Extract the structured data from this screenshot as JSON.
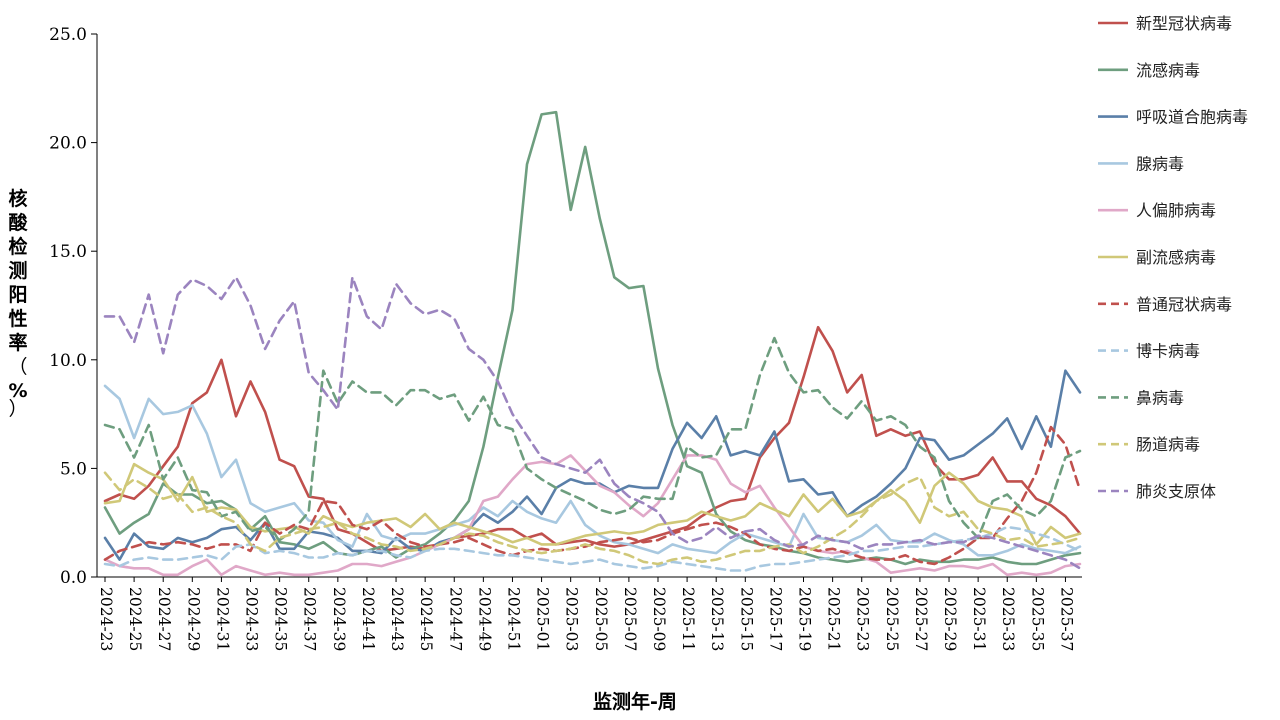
{
  "chart_data": {
    "type": "line",
    "title": "",
    "xlabel": "监测年-周",
    "ylabel": "核酸检测阳性率（%）",
    "ylim": [
      0,
      25
    ],
    "yticks": [
      "0.0",
      "5.0",
      "10.0",
      "15.0",
      "20.0",
      "25.0"
    ],
    "grid": false,
    "legend_position": "right",
    "x_tick_labels": [
      "2024-23",
      "2024-25",
      "2024-27",
      "2024-29",
      "2024-31",
      "2024-33",
      "2024-35",
      "2024-37",
      "2024-39",
      "2024-41",
      "2024-43",
      "2024-45",
      "2024-47",
      "2024-49",
      "2024-51",
      "2025-01",
      "2025-03",
      "2025-05",
      "2025-07",
      "2025-09",
      "2025-11",
      "2025-13",
      "2025-15",
      "2025-17",
      "2025-19",
      "2025-21",
      "2025-23",
      "2025-25",
      "2025-27",
      "2025-29",
      "2025-31",
      "2025-33",
      "2025-35",
      "2025-37"
    ],
    "x": [
      "2024-23",
      "2024-24",
      "2024-25",
      "2024-26",
      "2024-27",
      "2024-28",
      "2024-29",
      "2024-30",
      "2024-31",
      "2024-32",
      "2024-33",
      "2024-34",
      "2024-35",
      "2024-36",
      "2024-37",
      "2024-38",
      "2024-39",
      "2024-40",
      "2024-41",
      "2024-42",
      "2024-43",
      "2024-44",
      "2024-45",
      "2024-46",
      "2024-47",
      "2024-48",
      "2024-49",
      "2024-50",
      "2024-51",
      "2024-52",
      "2025-01",
      "2025-02",
      "2025-03",
      "2025-04",
      "2025-05",
      "2025-06",
      "2025-07",
      "2025-08",
      "2025-09",
      "2025-10",
      "2025-11",
      "2025-12",
      "2025-13",
      "2025-14",
      "2025-15",
      "2025-16",
      "2025-17",
      "2025-18",
      "2025-19",
      "2025-20",
      "2025-21",
      "2025-22",
      "2025-23",
      "2025-24",
      "2025-25",
      "2025-26",
      "2025-27",
      "2025-28",
      "2025-29",
      "2025-30",
      "2025-31",
      "2025-32",
      "2025-33",
      "2025-34",
      "2025-35",
      "2025-36",
      "2025-37",
      "2025-38"
    ],
    "series": [
      {
        "name": "新型冠状病毒",
        "color": "#c0504d",
        "dash": "solid",
        "values": [
          3.5,
          3.8,
          3.6,
          4.2,
          5.1,
          6.0,
          8.0,
          8.5,
          10.0,
          7.4,
          9.0,
          7.6,
          5.4,
          5.1,
          3.7,
          3.6,
          2.2,
          2.0,
          1.6,
          1.2,
          1.3,
          1.4,
          1.3,
          1.5,
          1.8,
          1.9,
          2.0,
          2.2,
          2.2,
          1.8,
          2.0,
          1.5,
          1.6,
          1.7,
          1.5,
          1.4,
          1.5,
          1.7,
          1.9,
          2.1,
          2.3,
          2.8,
          3.2,
          3.5,
          3.6,
          5.5,
          6.4,
          7.1,
          9.2,
          11.5,
          10.4,
          8.5,
          9.3,
          6.5,
          6.8,
          6.5,
          6.7,
          5.2,
          4.5,
          4.5,
          4.7,
          5.5,
          4.4,
          4.4,
          3.6,
          3.3,
          2.8,
          2.0
        ]
      },
      {
        "name": "流感病毒",
        "color": "#6e9e7f",
        "dash": "solid",
        "values": [
          3.2,
          2.0,
          2.5,
          2.9,
          4.3,
          3.8,
          3.8,
          3.4,
          3.5,
          3.1,
          2.2,
          2.8,
          1.6,
          1.5,
          1.3,
          1.6,
          1.1,
          1.0,
          1.2,
          1.4,
          0.9,
          1.3,
          1.5,
          2.0,
          2.6,
          3.5,
          6.0,
          9.2,
          12.3,
          19.0,
          21.3,
          21.4,
          16.9,
          19.8,
          16.5,
          13.8,
          13.3,
          13.4,
          9.6,
          7.0,
          5.1,
          4.8,
          2.9,
          2.1,
          1.7,
          1.5,
          1.4,
          1.2,
          1.1,
          0.9,
          0.8,
          0.7,
          0.8,
          0.9,
          0.8,
          0.6,
          0.8,
          0.7,
          0.7,
          0.8,
          0.8,
          0.9,
          0.7,
          0.6,
          0.6,
          0.8,
          1.0,
          1.1
        ]
      },
      {
        "name": "呼吸道合胞病毒",
        "color": "#5a7fa8",
        "dash": "solid",
        "values": [
          1.8,
          0.8,
          2.0,
          1.4,
          1.3,
          1.8,
          1.6,
          1.8,
          2.2,
          2.3,
          1.7,
          2.5,
          1.3,
          1.3,
          2.1,
          2.0,
          1.8,
          1.2,
          1.2,
          1.1,
          1.8,
          1.3,
          1.2,
          1.6,
          1.8,
          2.2,
          2.9,
          2.5,
          3.0,
          3.7,
          2.9,
          4.1,
          4.5,
          4.3,
          4.3,
          3.9,
          4.2,
          4.1,
          4.1,
          5.9,
          7.1,
          6.4,
          7.4,
          5.6,
          5.8,
          5.6,
          6.7,
          4.4,
          4.5,
          3.8,
          3.9,
          2.8,
          3.3,
          3.7,
          4.3,
          5.0,
          6.4,
          6.3,
          5.4,
          5.6,
          6.1,
          6.6,
          7.3,
          5.9,
          7.4,
          6.0,
          9.5,
          8.5
        ]
      },
      {
        "name": "腺病毒",
        "color": "#a8c8e0",
        "dash": "solid",
        "values": [
          8.8,
          8.2,
          6.4,
          8.2,
          7.5,
          7.6,
          7.9,
          6.6,
          4.6,
          5.4,
          3.4,
          3.0,
          3.2,
          3.4,
          2.6,
          2.5,
          1.7,
          1.4,
          2.9,
          1.9,
          1.7,
          2.0,
          2.0,
          2.2,
          2.4,
          2.6,
          3.2,
          2.8,
          3.5,
          3.0,
          2.7,
          2.5,
          3.5,
          2.4,
          1.9,
          1.6,
          1.5,
          1.3,
          1.1,
          1.5,
          1.3,
          1.2,
          1.1,
          1.6,
          2.0,
          1.8,
          1.6,
          1.4,
          2.9,
          1.8,
          1.7,
          1.6,
          1.9,
          2.4,
          1.7,
          1.6,
          1.6,
          2.0,
          1.7,
          1.5,
          1.0,
          1.0,
          1.2,
          1.5,
          1.3,
          1.2,
          1.1,
          1.4
        ]
      },
      {
        "name": "人偏肺病毒",
        "color": "#e0a8c8",
        "dash": "solid",
        "values": [
          0.8,
          0.5,
          0.4,
          0.4,
          0.1,
          0.1,
          0.5,
          0.8,
          0.1,
          0.5,
          0.3,
          0.1,
          0.2,
          0.1,
          0.1,
          0.2,
          0.3,
          0.6,
          0.6,
          0.5,
          0.7,
          0.9,
          1.2,
          1.5,
          1.8,
          2.2,
          3.5,
          3.7,
          4.5,
          5.2,
          5.3,
          5.2,
          5.6,
          4.9,
          4.2,
          3.9,
          3.3,
          2.8,
          3.4,
          4.5,
          5.6,
          5.6,
          5.4,
          4.3,
          3.9,
          4.2,
          3.2,
          2.3,
          1.4,
          1.2,
          1.1,
          1.2,
          0.9,
          0.7,
          0.2,
          0.3,
          0.4,
          0.3,
          0.5,
          0.5,
          0.4,
          0.6,
          0.1,
          0.2,
          0.1,
          0.2,
          0.5,
          0.6
        ]
      },
      {
        "name": "副流感病毒",
        "color": "#d0c878",
        "dash": "solid",
        "values": [
          3.4,
          3.5,
          5.2,
          4.8,
          4.5,
          3.5,
          4.6,
          3.0,
          3.2,
          3.1,
          2.3,
          2.1,
          2.2,
          2.3,
          2.0,
          2.8,
          2.5,
          2.3,
          2.5,
          2.6,
          2.7,
          2.3,
          2.9,
          2.2,
          2.5,
          2.3,
          2.1,
          1.9,
          1.6,
          1.8,
          1.5,
          1.5,
          1.7,
          1.9,
          2.0,
          2.1,
          2.0,
          2.1,
          2.4,
          2.5,
          2.6,
          3.0,
          2.8,
          2.6,
          2.8,
          3.4,
          3.1,
          2.8,
          3.8,
          3.0,
          3.6,
          2.8,
          3.0,
          3.5,
          4.0,
          3.5,
          2.5,
          4.2,
          4.8,
          4.3,
          3.5,
          3.2,
          3.1,
          2.8,
          1.5,
          2.3,
          1.8,
          2.0
        ]
      },
      {
        "name": "普通冠状病毒",
        "color": "#c0504d",
        "dash": "dashed",
        "values": [
          0.8,
          1.2,
          1.4,
          1.6,
          1.5,
          1.6,
          1.5,
          1.3,
          1.5,
          1.5,
          1.2,
          2.5,
          2.0,
          2.4,
          2.2,
          3.5,
          3.4,
          2.4,
          2.2,
          2.6,
          2.0,
          1.6,
          1.4,
          1.5,
          1.6,
          1.8,
          1.5,
          1.2,
          1.0,
          1.2,
          1.3,
          1.2,
          1.3,
          1.4,
          1.6,
          1.7,
          1.8,
          1.6,
          1.7,
          2.0,
          2.2,
          2.4,
          2.5,
          2.3,
          2.0,
          1.5,
          1.3,
          1.2,
          1.4,
          1.2,
          1.3,
          1.1,
          0.9,
          0.8,
          0.8,
          1.0,
          0.7,
          0.6,
          0.9,
          1.3,
          1.8,
          1.8,
          2.7,
          3.5,
          4.8,
          6.9,
          6.1,
          4.0
        ]
      },
      {
        "name": "博卡病毒",
        "color": "#a8c8e0",
        "dash": "dashed",
        "values": [
          0.6,
          0.5,
          0.8,
          0.9,
          0.8,
          0.8,
          0.9,
          1.0,
          0.8,
          1.4,
          1.5,
          1.1,
          1.2,
          1.1,
          0.9,
          0.9,
          1.1,
          1.0,
          1.2,
          1.2,
          1.0,
          0.9,
          1.2,
          1.3,
          1.3,
          1.2,
          1.1,
          1.0,
          1.0,
          0.9,
          0.8,
          0.7,
          0.6,
          0.7,
          0.8,
          0.6,
          0.5,
          0.4,
          0.5,
          0.7,
          0.6,
          0.5,
          0.4,
          0.3,
          0.3,
          0.5,
          0.6,
          0.6,
          0.7,
          0.8,
          0.9,
          1.0,
          1.2,
          1.2,
          1.3,
          1.4,
          1.4,
          1.5,
          1.6,
          1.7,
          1.8,
          2.0,
          2.3,
          2.2,
          2.0,
          1.8,
          1.5,
          1.2
        ]
      },
      {
        "name": "鼻病毒",
        "color": "#6e9e7f",
        "dash": "dashed",
        "values": [
          7.0,
          6.8,
          5.5,
          7.0,
          4.5,
          5.5,
          4.0,
          3.9,
          2.8,
          3.0,
          2.1,
          2.3,
          1.7,
          2.2,
          3.0,
          9.5,
          8.0,
          9.0,
          8.5,
          8.5,
          7.9,
          8.6,
          8.6,
          8.2,
          8.4,
          7.2,
          8.3,
          7.0,
          6.8,
          5.0,
          4.5,
          4.1,
          3.8,
          3.5,
          3.1,
          2.9,
          3.1,
          3.7,
          3.6,
          3.6,
          6.0,
          5.5,
          5.6,
          6.8,
          6.8,
          9.3,
          11.0,
          9.4,
          8.5,
          8.6,
          7.8,
          7.3,
          8.1,
          7.2,
          7.4,
          7.0,
          6.0,
          5.5,
          3.5,
          2.5,
          1.8,
          3.5,
          3.8,
          3.1,
          2.8,
          3.5,
          5.5,
          5.8
        ]
      },
      {
        "name": "肠道病毒",
        "color": "#d0c878",
        "dash": "dashed",
        "values": [
          4.8,
          4.0,
          4.5,
          4.1,
          3.6,
          3.8,
          3.0,
          3.2,
          2.8,
          2.5,
          1.5,
          1.2,
          1.8,
          2.0,
          2.2,
          2.3,
          2.5,
          2.0,
          1.8,
          1.5,
          1.4,
          1.2,
          1.3,
          1.5,
          1.8,
          2.0,
          1.9,
          1.6,
          1.4,
          1.2,
          1.1,
          1.2,
          1.3,
          1.5,
          1.3,
          1.2,
          1.0,
          0.7,
          0.6,
          0.8,
          0.9,
          0.7,
          0.8,
          1.0,
          1.2,
          1.2,
          1.4,
          1.5,
          1.1,
          1.4,
          1.8,
          2.2,
          2.8,
          3.5,
          3.8,
          4.3,
          4.6,
          3.2,
          2.8,
          3.0,
          2.2,
          2.0,
          1.7,
          1.8,
          1.4,
          1.5,
          1.6,
          1.8
        ]
      },
      {
        "name": "肺炎支原体",
        "color": "#9b84bf",
        "dash": "dashed",
        "values": [
          12.0,
          12.0,
          10.8,
          13.0,
          10.3,
          13.0,
          13.7,
          13.4,
          12.8,
          13.8,
          12.5,
          10.5,
          11.8,
          12.7,
          9.4,
          8.6,
          7.7,
          13.8,
          12.0,
          11.4,
          13.5,
          12.6,
          12.1,
          12.3,
          11.9,
          10.5,
          10.0,
          9.0,
          7.5,
          6.5,
          5.5,
          5.2,
          5.0,
          4.8,
          5.4,
          4.3,
          3.7,
          3.4,
          3.0,
          2.0,
          1.6,
          1.8,
          2.3,
          1.8,
          2.1,
          2.2,
          1.7,
          1.4,
          1.5,
          1.9,
          1.7,
          1.6,
          1.3,
          1.5,
          1.5,
          1.6,
          1.7,
          1.5,
          1.6,
          1.6,
          1.9,
          1.8,
          1.6,
          1.4,
          1.2,
          1.0,
          0.8,
          0.4
        ]
      }
    ]
  }
}
